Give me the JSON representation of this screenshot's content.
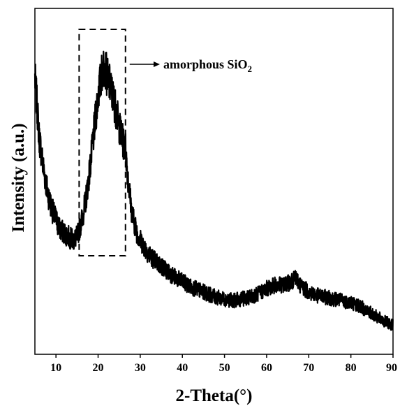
{
  "chart_data": {
    "type": "line",
    "title": "",
    "xlabel": "2-Theta(°)",
    "ylabel": "Intensity (a.u.)",
    "xlim": [
      5,
      90
    ],
    "ylim": [
      0,
      100
    ],
    "y_ticks_shown": false,
    "x_ticks": [
      10,
      20,
      30,
      40,
      50,
      60,
      70,
      80,
      90
    ],
    "x_tick_labels": [
      "10",
      "20",
      "30",
      "40",
      "50",
      "60",
      "70",
      "80",
      "90"
    ],
    "grid": false,
    "legend": "none",
    "series": [
      {
        "color": "#000000",
        "x": [
          5,
          5.5,
          6,
          7,
          8,
          9,
          10,
          11,
          12,
          13,
          14,
          15,
          16,
          17,
          18,
          19,
          20,
          21,
          21.5,
          22,
          23,
          24,
          25,
          26,
          26.5,
          27,
          28,
          29,
          30,
          32,
          34,
          36,
          38,
          40,
          42,
          44,
          46,
          48,
          50,
          52,
          54,
          56,
          58,
          60,
          62,
          64,
          66,
          67,
          68,
          70,
          72,
          74,
          76,
          78,
          80,
          82,
          84,
          86,
          88,
          90
        ],
        "y": [
          80,
          72,
          63,
          54,
          47,
          42,
          39,
          36,
          35,
          34,
          33,
          34,
          38,
          44,
          53,
          64,
          75,
          82,
          84,
          81,
          77,
          72,
          66,
          61,
          60,
          52,
          41,
          36,
          33,
          29,
          26.5,
          24.5,
          22.5,
          21,
          19.5,
          18.5,
          17.5,
          16.5,
          16,
          15.5,
          16,
          16.5,
          17.5,
          19,
          20,
          20,
          21,
          22,
          20,
          18,
          17,
          16.5,
          16,
          15.5,
          15,
          14,
          12.5,
          11,
          9.5,
          8.5
        ]
      }
    ],
    "annotations": [
      {
        "text_main": "amorphous SiO",
        "text_subscript": "2",
        "box_x_range": [
          15.5,
          26.5
        ],
        "arrow": "right"
      }
    ]
  }
}
